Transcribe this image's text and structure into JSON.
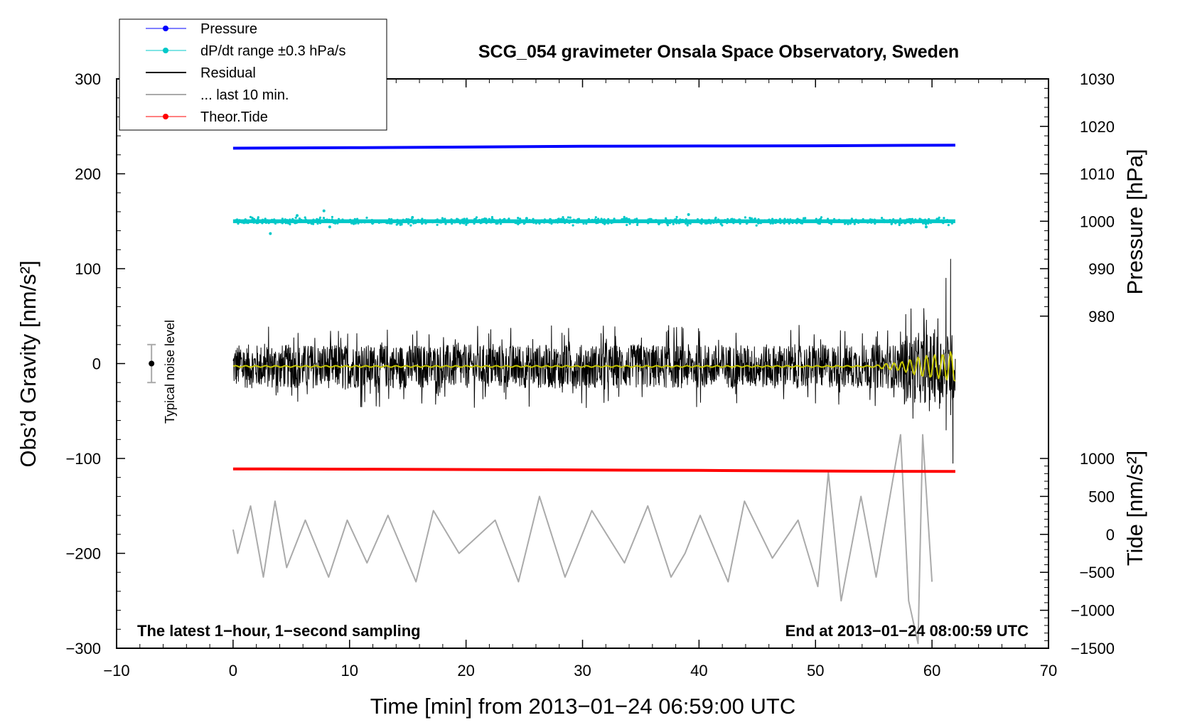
{
  "chart_data": {
    "type": "line",
    "title": "SCG_054 gravimeter Onsala Space Observatory, Sweden",
    "xlabel": "Time [min] from 2013−01−24 06:59:00 UTC",
    "ylabel": "Obs’d Gravity [nm/s²]",
    "ylabel_right_top": "Pressure [hPa]",
    "ylabel_right_bottom": "Tide [nm/s²]",
    "xlim": [
      -10,
      70
    ],
    "ylim": [
      -300,
      300
    ],
    "xticks": [
      {
        "value": -10,
        "label": "−10"
      },
      {
        "value": 0,
        "label": "0"
      },
      {
        "value": 10,
        "label": "10"
      },
      {
        "value": 20,
        "label": "20"
      },
      {
        "value": 30,
        "label": "30"
      },
      {
        "value": 40,
        "label": "40"
      },
      {
        "value": 50,
        "label": "50"
      },
      {
        "value": 60,
        "label": "60"
      },
      {
        "value": 70,
        "label": "70"
      }
    ],
    "yticks": [
      {
        "value": 300,
        "label": "300"
      },
      {
        "value": 200,
        "label": "200"
      },
      {
        "value": 100,
        "label": "100"
      },
      {
        "value": 0,
        "label": "0"
      },
      {
        "value": -100,
        "label": "−100"
      },
      {
        "value": -200,
        "label": "−200"
      },
      {
        "value": -300,
        "label": "−300"
      }
    ],
    "pressure_axis": {
      "ticks": [
        {
          "value": 980,
          "label": "980"
        },
        {
          "value": 990,
          "label": "990"
        },
        {
          "value": 1000,
          "label": "1000"
        },
        {
          "value": 1010,
          "label": "1010"
        },
        {
          "value": 1020,
          "label": "1020"
        },
        {
          "value": 1030,
          "label": "1030"
        }
      ],
      "mapping": {
        "hPa": [
          1000,
          1030
        ],
        "gravity": [
          150,
          300
        ]
      }
    },
    "tide_axis": {
      "ticks": [
        {
          "value": -1500,
          "label": "−1500"
        },
        {
          "value": -1000,
          "label": "−1000"
        },
        {
          "value": -500,
          "label": "−500"
        },
        {
          "value": 0,
          "label": "0"
        },
        {
          "value": 500,
          "label": "500"
        },
        {
          "value": 1000,
          "label": "1000"
        }
      ],
      "mapping": {
        "tide": [
          -1500,
          1000
        ],
        "gravity": [
          -300,
          -100
        ]
      }
    },
    "series": [
      {
        "name": "Pressure",
        "color": "#0000ff",
        "style": "line",
        "points": [
          [
            0,
            227
          ],
          [
            10,
            227.5
          ],
          [
            20,
            228.2
          ],
          [
            30,
            229
          ],
          [
            40,
            229.3
          ],
          [
            50,
            229.5
          ],
          [
            62,
            230.2
          ]
        ]
      },
      {
        "name": "dP/dt range ±0.3 hPa/s",
        "color": "#00c8c8",
        "style": "dots",
        "center": 150,
        "spread": 2.5,
        "outliers": [
          [
            3.2,
            137
          ],
          [
            5.5,
            156
          ],
          [
            7.8,
            161
          ],
          [
            8.3,
            144
          ],
          [
            15.4,
            154
          ],
          [
            25.2,
            153
          ],
          [
            39.1,
            157
          ],
          [
            59.5,
            144
          ]
        ]
      },
      {
        "name": "Residual",
        "color": "#000000",
        "style": "noise",
        "range_min": [
          0,
          62
        ],
        "amplitude": 23,
        "burst": [
          [
            61.2,
            90
          ],
          [
            61.6,
            110
          ],
          [
            61.8,
            -105
          ]
        ]
      },
      {
        "name": "Smoothed residual",
        "color": "#c8c800",
        "style": "line",
        "center": -3
      },
      {
        "name": "... last 10 min.",
        "color": "#aaaaaa",
        "style": "line",
        "points": [
          [
            0,
            -175
          ],
          [
            0.4,
            -200
          ],
          [
            1.5,
            -150
          ],
          [
            2.6,
            -225
          ],
          [
            3.6,
            -145
          ],
          [
            4.6,
            -215
          ],
          [
            6.2,
            -165
          ],
          [
            8.2,
            -225
          ],
          [
            9.8,
            -165
          ],
          [
            11.5,
            -210
          ],
          [
            13.3,
            -160
          ],
          [
            15.7,
            -230
          ],
          [
            17.2,
            -155
          ],
          [
            19.4,
            -200
          ],
          [
            22.5,
            -165
          ],
          [
            24.5,
            -230
          ],
          [
            26.3,
            -140
          ],
          [
            28.5,
            -225
          ],
          [
            30.8,
            -155
          ],
          [
            33.6,
            -210
          ],
          [
            35.6,
            -150
          ],
          [
            37.6,
            -225
          ],
          [
            38.8,
            -200
          ],
          [
            40.1,
            -160
          ],
          [
            42.5,
            -230
          ],
          [
            43.9,
            -145
          ],
          [
            46.3,
            -205
          ],
          [
            48.5,
            -165
          ],
          [
            50.2,
            -235
          ],
          [
            51.1,
            -115
          ],
          [
            52.2,
            -250
          ],
          [
            53.9,
            -140
          ],
          [
            55.2,
            -225
          ],
          [
            57.3,
            -75
          ],
          [
            58.0,
            -250
          ],
          [
            58.8,
            -295
          ],
          [
            59.2,
            -75
          ],
          [
            60,
            -230
          ]
        ]
      },
      {
        "name": "Theor.Tide",
        "color": "#ff0000",
        "style": "line",
        "points": [
          [
            0,
            -111
          ],
          [
            12,
            -111.3
          ],
          [
            27,
            -112
          ],
          [
            40,
            -112.6
          ],
          [
            53,
            -113.4
          ],
          [
            62,
            -113.7
          ]
        ]
      }
    ],
    "legend": {
      "placement": "top-left",
      "entries": [
        {
          "label": "Pressure",
          "color": "#0000ff",
          "marker": true
        },
        {
          "label": "dP/dt range ±0.3 hPa/s",
          "color": "#00c8c8",
          "marker": true
        },
        {
          "label": "Residual",
          "color": "#000000",
          "marker": false
        },
        {
          "label": "... last 10 min.",
          "color": "#aaaaaa",
          "marker": false
        },
        {
          "label": "Theor.Tide",
          "color": "#ff0000",
          "marker": true
        }
      ]
    },
    "noise_level": {
      "label": "Typical noise level",
      "x": -7,
      "value": 0,
      "half_range": 20
    },
    "annotations": {
      "bottom_left": "The latest 1−hour, 1−second sampling",
      "bottom_right": "End at 2013−01−24 08:00:59 UTC"
    }
  }
}
